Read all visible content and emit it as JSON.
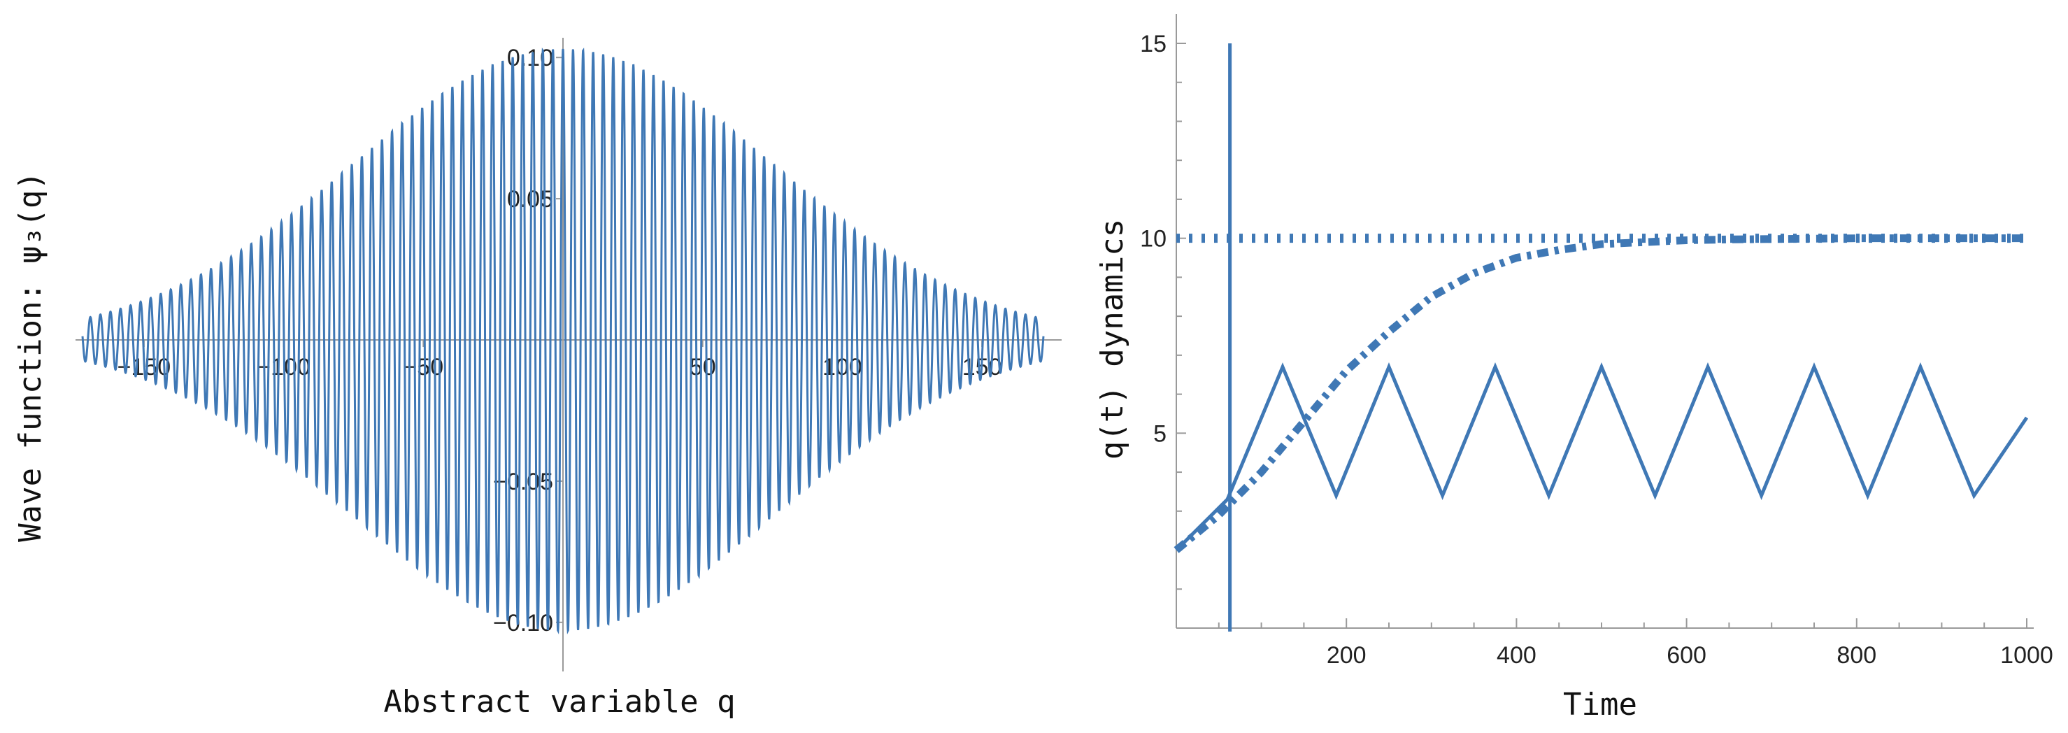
{
  "colors": {
    "series": "#3F78B5",
    "axis": "#9a9a9a"
  },
  "chart_data": [
    {
      "type": "line",
      "xlabel": "Abstract variable q",
      "ylabel": "Wave function: ψ₃(q)",
      "xlim": [
        -172,
        172
      ],
      "ylim": [
        -0.105,
        0.105
      ],
      "x_ticks": [
        -150,
        -100,
        -50,
        50,
        100,
        150
      ],
      "x_tick_labels": [
        "−150",
        "−100",
        "−50",
        "50",
        "100",
        "150"
      ],
      "y_ticks": [
        0.1,
        0.05,
        -0.05,
        -0.1
      ],
      "y_tick_labels": [
        "0.10",
        "0.05",
        "−0.05",
        "−0.10"
      ],
      "series": [
        {
          "function": "envelope(q) * cos(2π q / period)",
          "envelope_amplitude": 0.103,
          "envelope_gaussian_sigma": 75,
          "period": 3.6,
          "x_range": [
            -172,
            172
          ]
        }
      ]
    },
    {
      "type": "line",
      "xlabel": "Time",
      "ylabel": "q(t) dynamics",
      "xlim": [
        0,
        1000
      ],
      "ylim": [
        0,
        15
      ],
      "x_ticks": [
        200,
        400,
        600,
        800,
        1000
      ],
      "x_tick_labels": [
        "200",
        "400",
        "600",
        "800",
        "1000"
      ],
      "y_ticks": [
        5,
        10,
        15
      ],
      "y_tick_labels": [
        "5",
        "10",
        "15"
      ],
      "series": [
        {
          "style": "solid",
          "x": [
            0,
            60,
            125,
            188,
            250,
            313,
            375,
            438,
            500,
            563,
            625,
            688,
            750,
            813,
            875,
            938,
            1000
          ],
          "y": [
            2.0,
            3.3,
            6.7,
            3.4,
            6.7,
            3.4,
            6.7,
            3.4,
            6.7,
            3.4,
            6.7,
            3.4,
            6.7,
            3.4,
            6.7,
            3.4,
            5.4
          ]
        },
        {
          "style": "dotted",
          "x": [
            0,
            1000
          ],
          "y": [
            10,
            10
          ]
        },
        {
          "style": "dot-dash",
          "x": [
            0,
            50,
            100,
            150,
            200,
            250,
            300,
            350,
            400,
            450,
            500,
            550,
            600,
            650,
            700,
            800,
            900,
            1000
          ],
          "y": [
            2.0,
            2.9,
            4.0,
            5.3,
            6.6,
            7.6,
            8.5,
            9.1,
            9.5,
            9.7,
            9.85,
            9.9,
            9.95,
            9.97,
            9.98,
            10.0,
            10.0,
            10.0
          ]
        },
        {
          "style": "vertical",
          "x": [
            63,
            63
          ],
          "y": [
            0,
            15
          ]
        }
      ]
    }
  ]
}
